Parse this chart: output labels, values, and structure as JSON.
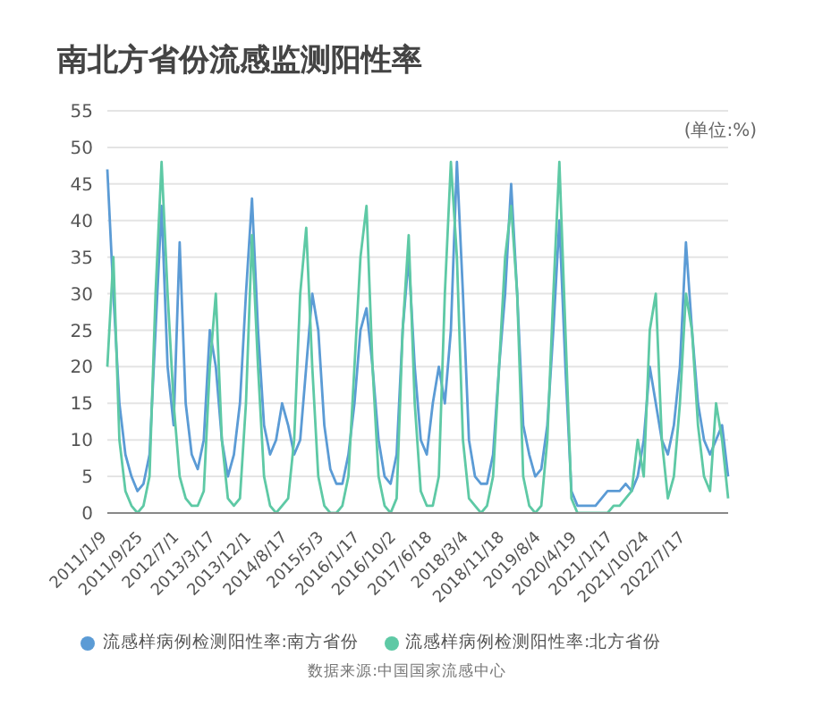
{
  "chart_data": {
    "type": "line",
    "title": "南北方省份流感监测阳性率",
    "categories": [
      "2011/1/9",
      null,
      null,
      null,
      null,
      null,
      "2011/9/25",
      null,
      null,
      null,
      null,
      null,
      "2012/7/1",
      null,
      null,
      null,
      null,
      null,
      "2013/3/17",
      null,
      null,
      null,
      null,
      null,
      "2013/12/1",
      null,
      null,
      null,
      null,
      null,
      "2014/8/17",
      null,
      null,
      null,
      null,
      null,
      "2015/5/3",
      null,
      null,
      null,
      null,
      null,
      "2016/1/17",
      null,
      null,
      null,
      null,
      null,
      "2016/10/2",
      null,
      null,
      null,
      null,
      null,
      "2017/6/18",
      null,
      null,
      null,
      null,
      null,
      "2018/3/4",
      null,
      null,
      null,
      null,
      null,
      "2018/11/18",
      null,
      null,
      null,
      null,
      null,
      "2019/8/4",
      null,
      null,
      null,
      null,
      null,
      "2020/4/19",
      null,
      null,
      null,
      null,
      null,
      "2021/1/17",
      null,
      null,
      null,
      null,
      null,
      "2021/10/24",
      null,
      null,
      null,
      null,
      null,
      "2022/7/17",
      null,
      null,
      null,
      null,
      null,
      null,
      null
    ],
    "series": [
      {
        "name": "流感样病例检测阳性率:南方省份",
        "color": "#5b9bd5",
        "values": [
          47,
          30,
          15,
          8,
          5,
          3,
          4,
          8,
          25,
          42,
          20,
          12,
          37,
          15,
          8,
          6,
          10,
          25,
          20,
          10,
          5,
          8,
          15,
          30,
          43,
          25,
          12,
          8,
          10,
          15,
          12,
          8,
          10,
          20,
          30,
          25,
          12,
          6,
          4,
          4,
          8,
          15,
          25,
          28,
          20,
          10,
          5,
          4,
          8,
          25,
          35,
          20,
          10,
          8,
          15,
          20,
          15,
          25,
          48,
          30,
          10,
          5,
          4,
          4,
          8,
          20,
          30,
          45,
          30,
          12,
          8,
          5,
          6,
          12,
          25,
          40,
          20,
          3,
          1,
          1,
          1,
          1,
          2,
          3,
          3,
          3,
          4,
          3,
          5,
          10,
          20,
          15,
          10,
          8,
          12,
          20,
          37,
          25,
          15,
          10,
          8,
          10,
          12,
          5
        ]
      },
      {
        "name": "流感样病例检测阳性率:北方省份",
        "color": "#5ec9a5",
        "values": [
          20,
          35,
          10,
          3,
          1,
          0,
          1,
          5,
          30,
          48,
          30,
          15,
          5,
          2,
          1,
          1,
          3,
          20,
          30,
          10,
          2,
          1,
          2,
          15,
          38,
          20,
          5,
          1,
          0,
          1,
          2,
          10,
          30,
          39,
          20,
          5,
          1,
          0,
          0,
          1,
          5,
          20,
          35,
          42,
          20,
          5,
          1,
          0,
          2,
          25,
          38,
          15,
          3,
          1,
          1,
          5,
          30,
          48,
          35,
          10,
          2,
          1,
          0,
          1,
          5,
          20,
          35,
          42,
          30,
          5,
          1,
          0,
          1,
          10,
          30,
          48,
          25,
          2,
          0,
          0,
          0,
          0,
          0,
          0,
          1,
          1,
          2,
          3,
          10,
          5,
          25,
          30,
          10,
          2,
          5,
          15,
          30,
          25,
          12,
          5,
          3,
          15,
          10,
          2
        ]
      }
    ],
    "ylim": [
      0,
      55
    ],
    "yticks": [
      0,
      5,
      10,
      15,
      20,
      25,
      30,
      35,
      40,
      45,
      50,
      55
    ],
    "grid": "y",
    "legend": "bottom",
    "marker": "none",
    "line_style": "solid",
    "annotations": [
      "(单位:%)",
      "数据来源:中国国家流感中心"
    ]
  }
}
